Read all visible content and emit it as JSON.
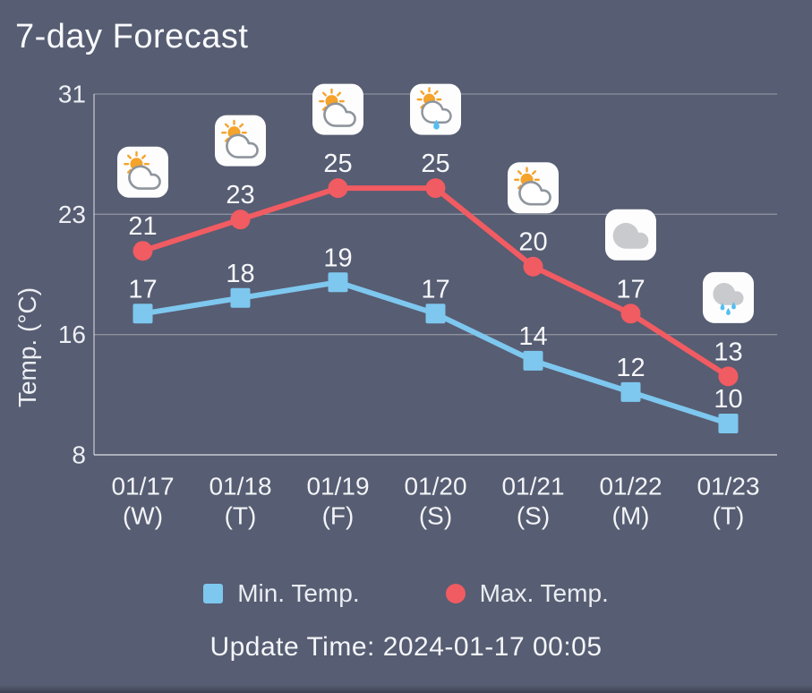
{
  "header": {
    "title": "7-day Forecast"
  },
  "footer": {
    "update_time": "Update Time: 2024-01-17 00:05"
  },
  "colors": {
    "background": "#575D72",
    "text": "#F4F6FA",
    "grid": "rgba(255,255,255,0.32)",
    "axis": "rgba(255,255,255,0.55)",
    "min_series": "#7EC7EF",
    "max_series": "#F15B62",
    "icon_sun": "#F5A32B",
    "icon_cloud_gray": "#C8CACD",
    "icon_cloud_outline": "#8F959C",
    "icon_rain": "#54BEF0",
    "icon_tile": "#FDFDFE"
  },
  "chart_data": {
    "type": "line",
    "title": "7-day Forecast",
    "categories": [
      "01/17",
      "01/18",
      "01/19",
      "01/20",
      "01/21",
      "01/22",
      "01/23"
    ],
    "weekdays": [
      "(W)",
      "(T)",
      "(F)",
      "(S)",
      "(S)",
      "(M)",
      "(T)"
    ],
    "series": [
      {
        "name": "Min. Temp.",
        "marker": "square",
        "color": "#7EC7EF",
        "values": [
          17,
          18,
          19,
          17,
          14,
          12,
          10
        ]
      },
      {
        "name": "Max. Temp.",
        "marker": "circle",
        "color": "#F15B62",
        "values": [
          21,
          23,
          25,
          25,
          20,
          17,
          13
        ]
      }
    ],
    "weather_icons": [
      "sun-cloud-icon",
      "sun-cloud-icon",
      "sun-cloud-icon",
      "sun-cloud-rain-icon",
      "sun-cloud-icon",
      "cloud-icon",
      "cloud-rain-icon"
    ],
    "ylabel": "Temp. (°C)",
    "yticks": [
      31,
      23,
      16,
      8
    ],
    "ylim": [
      8,
      31
    ],
    "grid": true,
    "legend_position": "bottom"
  }
}
